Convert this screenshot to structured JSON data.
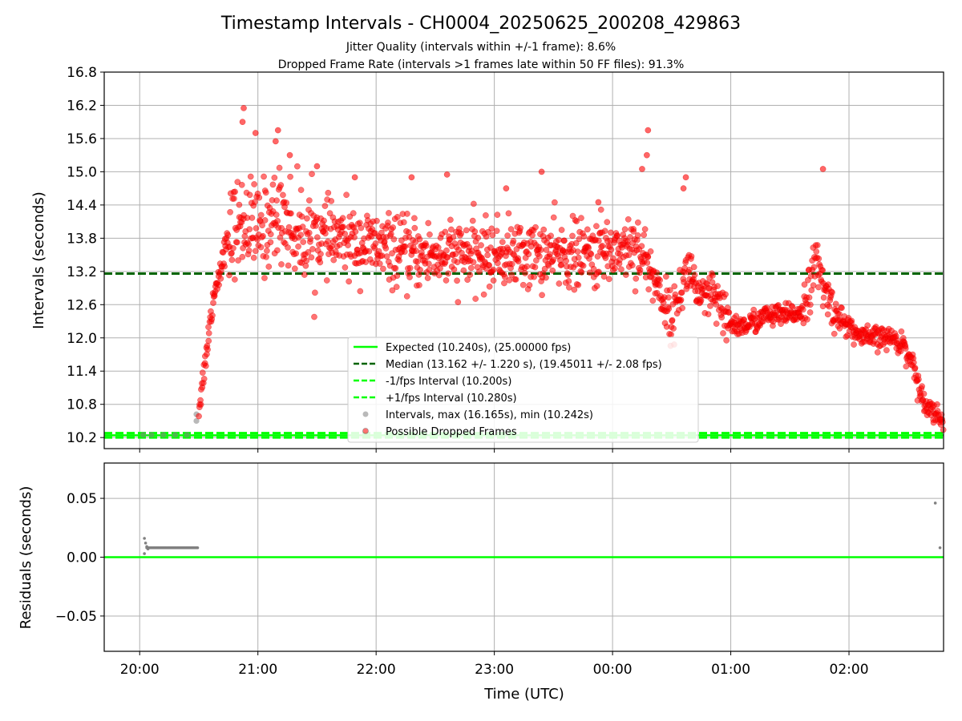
{
  "chart_data": [
    {
      "type": "scatter",
      "title": "Timestamp Intervals - CH0004_20250625_200208_429863",
      "subtitle_lines": [
        "Jitter Quality (intervals within +/-1 frame): 8.6%",
        "Dropped Frame Rate (intervals >1 frames late within 50 FF files): 91.3%"
      ],
      "xlabel": "",
      "ylabel": "Intervals (seconds)",
      "xlim_hours": [
        19.7,
        26.8
      ],
      "ylim": [
        10.0,
        16.8
      ],
      "yticks": [
        10.2,
        10.8,
        11.4,
        12.0,
        12.6,
        13.2,
        13.8,
        14.4,
        15.0,
        15.6,
        16.2,
        16.8
      ],
      "ytick_labels": [
        "10.2",
        "10.8",
        "11.4",
        "12.0",
        "12.6",
        "13.2",
        "13.8",
        "14.4",
        "15.0",
        "15.6",
        "16.2",
        "16.8"
      ],
      "grid": true,
      "legend_position": "lower-center",
      "reference_lines": [
        {
          "name": "Expected (10.240s), (25.00000 fps)",
          "value": 10.24,
          "color": "#00ff00",
          "style": "solid"
        },
        {
          "name": "Median (13.162 +/- 1.220 s), (19.45011 +/- 2.08 fps)",
          "value": 13.162,
          "color": "#006400",
          "style": "dashed"
        },
        {
          "name": "-1/fps Interval (10.200s)",
          "value": 10.2,
          "color": "#00ff00",
          "style": "dashed"
        },
        {
          "name": "+1/fps Interval (10.280s)",
          "value": 10.28,
          "color": "#00ff00",
          "style": "dashed"
        }
      ],
      "series": [
        {
          "name": "Intervals, max (16.165s), min (10.242s)",
          "color": "#808080",
          "points_time_interval": [
            [
              20.03,
              10.25
            ],
            [
              20.1,
              10.248
            ],
            [
              20.2,
              10.248
            ],
            [
              20.3,
              10.248
            ],
            [
              20.4,
              10.248
            ],
            [
              20.48,
              10.5
            ],
            [
              20.48,
              10.62
            ]
          ]
        },
        {
          "name": "Possible Dropped Frames",
          "color": "#ff0000",
          "trend_profile_time_interval": [
            [
              20.5,
              10.7
            ],
            [
              20.55,
              11.5
            ],
            [
              20.62,
              12.7
            ],
            [
              20.72,
              13.6
            ],
            [
              20.8,
              14.0
            ],
            [
              20.9,
              14.1
            ],
            [
              21.0,
              13.9
            ],
            [
              21.2,
              14.3
            ],
            [
              21.3,
              13.9
            ],
            [
              21.6,
              13.8
            ],
            [
              21.9,
              13.7
            ],
            [
              22.3,
              13.5
            ],
            [
              22.7,
              13.5
            ],
            [
              23.0,
              13.5
            ],
            [
              23.5,
              13.5
            ],
            [
              23.8,
              13.5
            ],
            [
              24.0,
              13.6
            ],
            [
              24.2,
              13.7
            ],
            [
              24.3,
              13.3
            ],
            [
              24.45,
              12.6
            ],
            [
              24.5,
              12.3
            ],
            [
              24.58,
              12.9
            ],
            [
              24.65,
              13.3
            ],
            [
              24.75,
              12.6
            ],
            [
              24.85,
              12.8
            ],
            [
              24.95,
              12.3
            ],
            [
              25.1,
              12.2
            ],
            [
              25.3,
              12.4
            ],
            [
              25.5,
              12.4
            ],
            [
              25.6,
              12.5
            ],
            [
              25.65,
              12.8
            ],
            [
              25.72,
              13.4
            ],
            [
              25.8,
              12.8
            ],
            [
              25.9,
              12.4
            ],
            [
              26.0,
              12.2
            ],
            [
              26.1,
              12.0
            ],
            [
              26.2,
              12.0
            ],
            [
              26.35,
              12.0
            ],
            [
              26.45,
              11.9
            ],
            [
              26.55,
              11.5
            ],
            [
              26.6,
              11.0
            ],
            [
              26.7,
              10.7
            ],
            [
              26.8,
              10.5
            ]
          ],
          "outliers_time_interval": [
            [
              20.88,
              16.15
            ],
            [
              20.87,
              15.9
            ],
            [
              20.98,
              15.7
            ],
            [
              21.17,
              15.75
            ],
            [
              21.15,
              15.55
            ],
            [
              21.27,
              15.3
            ],
            [
              21.82,
              14.9
            ],
            [
              22.6,
              14.95
            ],
            [
              23.4,
              15.0
            ],
            [
              24.25,
              15.05
            ],
            [
              24.3,
              15.75
            ],
            [
              24.29,
              15.3
            ],
            [
              24.62,
              14.9
            ],
            [
              24.6,
              14.7
            ],
            [
              25.78,
              15.05
            ],
            [
              21.5,
              15.1
            ],
            [
              23.88,
              14.45
            ],
            [
              23.1,
              14.7
            ],
            [
              22.3,
              14.9
            ]
          ]
        }
      ]
    },
    {
      "type": "scatter",
      "title": "",
      "xlabel": "Time (UTC)",
      "ylabel": "Residuals (seconds)",
      "xlim_hours": [
        19.7,
        26.8
      ],
      "ylim": [
        -0.08,
        0.08
      ],
      "yticks": [
        0.05,
        0.0,
        -0.05
      ],
      "ytick_labels": [
        "0.05",
        "0.00",
        "−0.05"
      ],
      "xticks_hours": [
        20,
        21,
        22,
        23,
        24,
        25,
        26
      ],
      "xtick_labels": [
        "20:00",
        "21:00",
        "22:00",
        "23:00",
        "00:00",
        "01:00",
        "02:00"
      ],
      "grid": true,
      "reference_lines": [
        {
          "name": "",
          "value": 0.0,
          "color": "#00ff00",
          "style": "solid"
        }
      ],
      "series": [
        {
          "name": "",
          "color": "#808080",
          "points_time_residual": [
            [
              20.04,
              0.016
            ],
            [
              20.04,
              0.003
            ],
            [
              20.05,
              0.012
            ],
            [
              20.06,
              0.009
            ],
            [
              20.07,
              0.007
            ],
            [
              20.1,
              0.008
            ],
            [
              20.15,
              0.008
            ],
            [
              20.2,
              0.008
            ],
            [
              20.25,
              0.008
            ],
            [
              20.3,
              0.008
            ],
            [
              20.35,
              0.008
            ],
            [
              20.4,
              0.008
            ],
            [
              20.45,
              0.008
            ],
            [
              20.49,
              0.008
            ],
            [
              26.73,
              0.046
            ],
            [
              26.77,
              0.008
            ]
          ]
        }
      ]
    }
  ]
}
